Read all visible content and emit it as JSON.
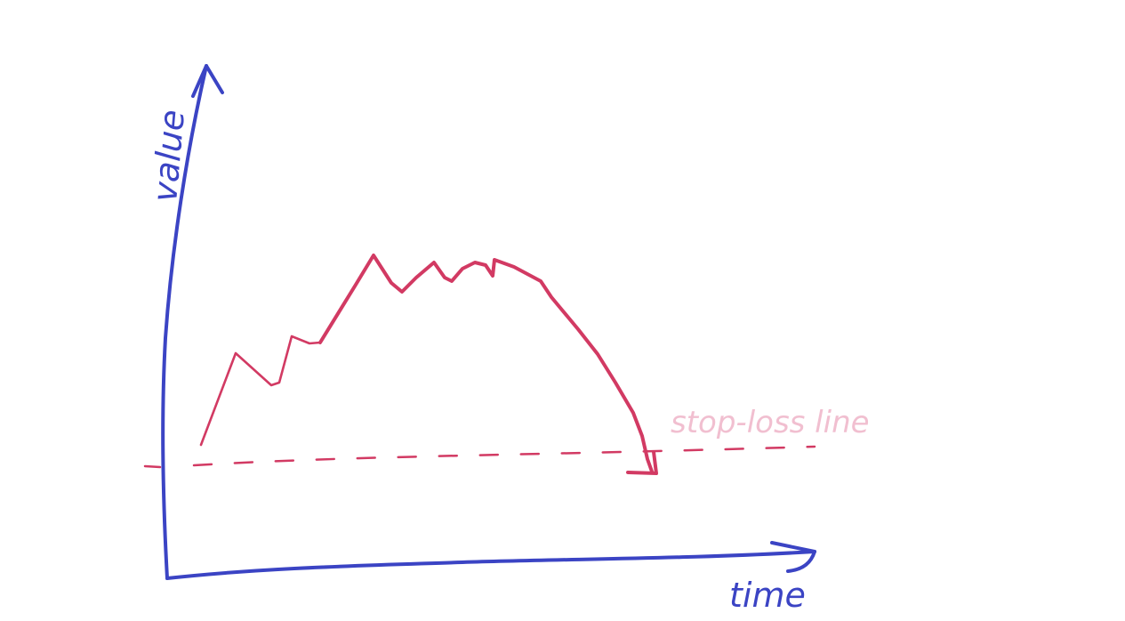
{
  "diagram": {
    "labels": {
      "y_axis": "value",
      "x_axis": "time",
      "threshold": "stop-loss line"
    },
    "colors": {
      "axes": "#3b44c4",
      "value_line": "#d23a63",
      "stop_loss_line": "#d23a63",
      "stop_loss_label": "#f1bfd0"
    }
  }
}
